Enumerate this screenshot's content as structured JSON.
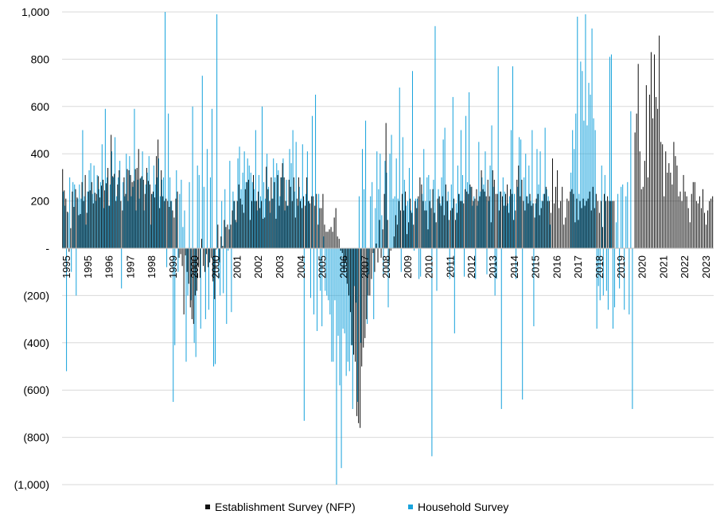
{
  "chart_data": {
    "type": "bar",
    "title": "",
    "xlabel": "",
    "ylabel": "",
    "ylim": [
      -1000,
      1000
    ],
    "y_ticks": [
      1000,
      800,
      600,
      400,
      200,
      0,
      -200,
      -400,
      -600,
      -800,
      -1000
    ],
    "y_tick_labels": [
      "1,000",
      "800",
      "600",
      "400",
      "200",
      "-",
      "(200)",
      "(400)",
      "(600)",
      "(800)",
      "(1,000)"
    ],
    "x_tick_labels": [
      "1995",
      "1995",
      "1996",
      "1997",
      "1998",
      "1999",
      "2000",
      "2000",
      "2001",
      "2002",
      "2003",
      "2004",
      "2005",
      "2006",
      "2007",
      "2008",
      "2009",
      "2010",
      "2011",
      "2012",
      "2013",
      "2014",
      "2015",
      "2016",
      "2017",
      "2018",
      "2019",
      "2020",
      "2021",
      "2022",
      "2023"
    ],
    "grid": "horizontal",
    "legend_position": "bottom",
    "colors": {
      "establishment": "#111111",
      "household": "#19a3dc",
      "grid": "#d9d9d9"
    },
    "period": "monthly, 1995 to 2023",
    "series": [
      {
        "name": "Establishment Survey (NFP)",
        "color": "#111111",
        "values": [
          335,
          245,
          210,
          155,
          -15,
          85,
          240,
          175,
          250,
          215,
          140,
          145,
          280,
          200,
          310,
          150,
          240,
          245,
          280,
          190,
          235,
          230,
          305,
          215,
          265,
          290,
          245,
          275,
          340,
          180,
          480,
          305,
          315,
          200,
          270,
          330,
          200,
          160,
          300,
          230,
          335,
          330,
          310,
          280,
          285,
          335,
          340,
          420,
          295,
          305,
          290,
          230,
          340,
          285,
          270,
          230,
          240,
          215,
          390,
          460,
          170,
          330,
          220,
          200,
          210,
          200,
          175,
          200,
          160,
          130,
          210,
          240,
          -40,
          -25,
          -75,
          -280,
          -30,
          -100,
          -150,
          -250,
          -300,
          -320,
          -200,
          -180,
          -80,
          -125,
          40,
          -75,
          -100,
          -25,
          -80,
          -60,
          -40,
          -140,
          -215,
          -5,
          100,
          -60,
          50,
          10,
          120,
          90,
          100,
          80,
          100,
          160,
          200,
          120,
          200,
          270,
          210,
          185,
          150,
          250,
          280,
          290,
          120,
          200,
          310,
          200,
          200,
          240,
          170,
          200,
          125,
          130,
          345,
          250,
          200,
          300,
          210,
          280,
          125,
          310,
          180,
          300,
          360,
          300,
          200,
          180,
          290,
          260,
          200,
          300,
          130,
          210,
          300,
          200,
          170,
          220,
          180,
          300,
          200,
          190,
          220,
          220,
          180,
          230,
          100,
          170,
          170,
          230,
          100,
          70,
          70,
          80,
          90,
          70,
          130,
          170,
          50,
          40,
          -10,
          -20,
          -100,
          -60,
          -150,
          -200,
          -270,
          -410,
          -450,
          -480,
          -710,
          -740,
          -760,
          -500,
          -420,
          -380,
          -300,
          -200,
          -200,
          -130,
          -20,
          -100,
          20,
          -60,
          120,
          -40,
          80,
          230,
          530,
          120,
          -60,
          -10,
          0,
          50,
          140,
          100,
          200,
          160,
          230,
          160,
          240,
          60,
          110,
          210,
          150,
          100,
          200,
          170,
          220,
          300,
          270,
          200,
          160,
          160,
          80,
          200,
          170,
          250,
          150,
          110,
          210,
          220,
          180,
          220,
          140,
          270,
          200,
          120,
          160,
          170,
          210,
          120,
          150,
          230,
          200,
          200,
          190,
          250,
          240,
          230,
          270,
          260,
          200,
          210,
          250,
          200,
          220,
          330,
          250,
          240,
          220,
          290,
          220,
          110,
          330,
          290,
          230,
          230,
          160,
          240,
          220,
          180,
          230,
          270,
          150,
          250,
          230,
          120,
          160,
          290,
          350,
          220,
          290,
          200,
          160,
          220,
          190,
          230,
          180,
          190,
          130,
          210,
          230,
          140,
          170,
          200,
          230,
          260,
          200,
          200,
          150,
          380,
          190,
          260,
          330,
          170,
          200,
          260,
          100,
          130,
          210,
          200,
          240,
          250,
          230,
          110,
          210,
          120,
          200,
          170,
          210,
          180,
          200,
          210,
          240,
          160,
          260,
          170,
          230,
          200,
          150,
          200,
          90,
          230,
          200,
          220,
          200,
          200,
          200,
          200,
          0,
          0,
          0,
          0,
          0,
          0,
          0,
          0,
          0,
          0,
          0,
          0,
          490,
          570,
          780,
          410,
          250,
          260,
          370,
          690,
          300,
          650,
          830,
          550,
          820,
          640,
          590,
          900,
          450,
          440,
          220,
          410,
          320,
          360,
          320,
          270,
          450,
          390,
          350,
          220,
          240,
          200,
          310,
          240,
          220,
          170,
          110,
          230,
          280,
          280,
          200,
          190,
          220,
          170,
          250,
          150,
          100,
          160,
          200,
          210,
          220
        ]
      },
      {
        "name": "Household Survey",
        "color": "#19a3dc",
        "values": [
          240,
          180,
          -520,
          150,
          300,
          -100,
          280,
          270,
          -200,
          210,
          270,
          210,
          500,
          220,
          100,
          240,
          330,
          360,
          230,
          350,
          200,
          310,
          250,
          280,
          440,
          170,
          590,
          300,
          180,
          270,
          410,
          300,
          470,
          220,
          300,
          370,
          -170,
          280,
          220,
          400,
          200,
          390,
          220,
          260,
          590,
          160,
          290,
          210,
          300,
          410,
          160,
          270,
          320,
          390,
          100,
          230,
          350,
          270,
          300,
          380,
          220,
          290,
          300,
          1000,
          -80,
          570,
          300,
          200,
          -650,
          -410,
          330,
          -100,
          230,
          290,
          90,
          160,
          -480,
          -200,
          280,
          -220,
          600,
          -400,
          -460,
          350,
          310,
          -340,
          730,
          260,
          -300,
          420,
          -260,
          300,
          590,
          -500,
          -490,
          990,
          -130,
          -200,
          200,
          -190,
          250,
          -320,
          -10,
          370,
          -270,
          240,
          200,
          110,
          380,
          430,
          250,
          320,
          410,
          280,
          380,
          350,
          320,
          280,
          250,
          500,
          160,
          310,
          220,
          600,
          280,
          210,
          400,
          260,
          150,
          210,
          380,
          300,
          360,
          330,
          220,
          300,
          380,
          160,
          290,
          180,
          420,
          360,
          500,
          240,
          450,
          180,
          260,
          210,
          440,
          -730,
          230,
          410,
          200,
          -210,
          560,
          -280,
          650,
          -350,
          230,
          -180,
          -330,
          50,
          -180,
          -200,
          -220,
          -280,
          -480,
          -480,
          -220,
          -1000,
          -370,
          -580,
          -930,
          -340,
          -360,
          -540,
          -480,
          -520,
          -410,
          -680,
          -160,
          -230,
          -650,
          220,
          -400,
          420,
          250,
          540,
          -320,
          -110,
          220,
          280,
          -300,
          170,
          410,
          250,
          400,
          140,
          -110,
          370,
          320,
          -250,
          400,
          480,
          210,
          220,
          380,
          210,
          680,
          -100,
          470,
          290,
          180,
          200,
          340,
          160,
          750,
          -10,
          210,
          210,
          -130,
          -120,
          230,
          420,
          200,
          300,
          310,
          250,
          -880,
          290,
          940,
          -180,
          250,
          190,
          300,
          460,
          510,
          200,
          240,
          -130,
          270,
          640,
          -360,
          190,
          350,
          230,
          500,
          310,
          -120,
          560,
          280,
          660,
          260,
          180,
          220,
          -130,
          180,
          450,
          240,
          300,
          270,
          410,
          -110,
          200,
          350,
          520,
          260,
          -200,
          -130,
          770,
          240,
          -680,
          300,
          240,
          180,
          190,
          220,
          500,
          770,
          230,
          -130,
          260,
          470,
          460,
          -640,
          300,
          400,
          220,
          350,
          200,
          500,
          -330,
          190,
          420,
          270,
          410,
          200,
          230,
          510,
          250,
          220,
          100,
          0,
          0,
          0,
          0,
          0,
          0,
          0,
          0,
          0,
          0,
          0,
          0,
          320,
          500,
          420,
          570,
          980,
          230,
          790,
          750,
          540,
          990,
          520,
          700,
          650,
          930,
          550,
          500,
          -340,
          -160,
          -220,
          350,
          -200,
          310,
          -180,
          -260,
          810,
          820,
          -340,
          -250,
          110,
          230,
          -170,
          260,
          270,
          -260,
          220,
          280,
          -280,
          580,
          -680
        ]
      }
    ]
  }
}
